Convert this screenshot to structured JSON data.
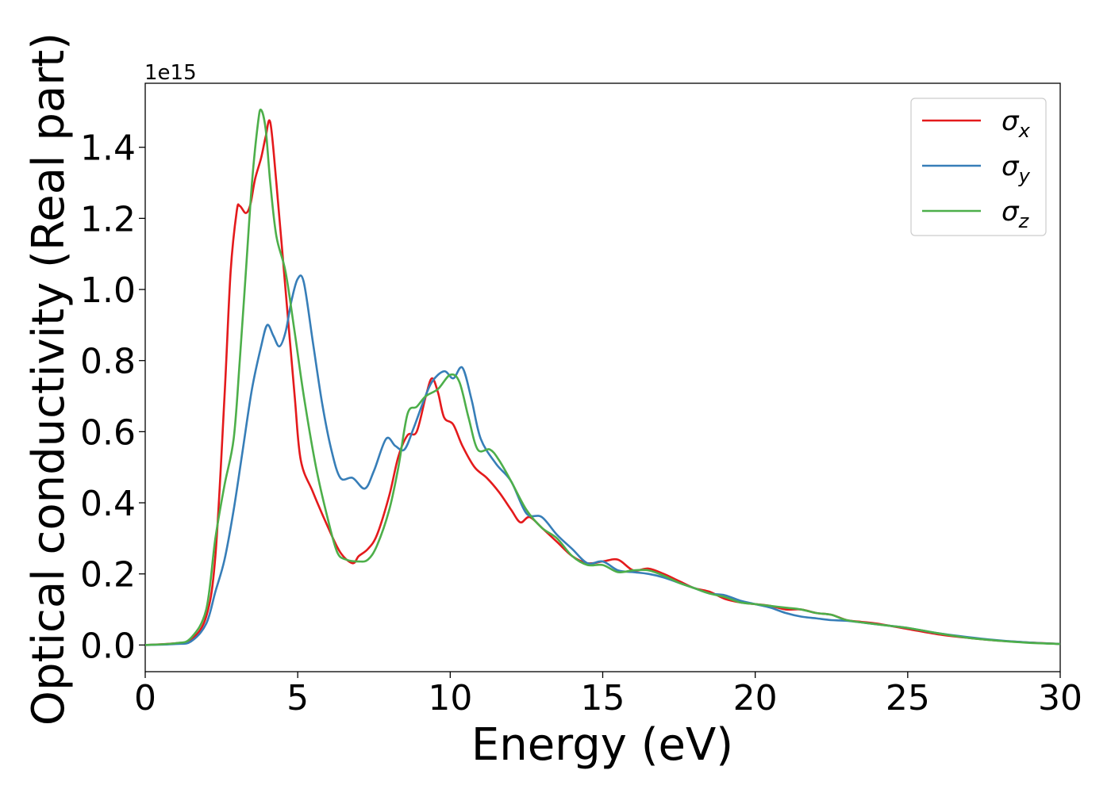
{
  "chart_data": {
    "type": "line",
    "title": "",
    "xlabel": "Energy (eV)",
    "ylabel": "Optical conductivity (Real part)",
    "y_offset_label": "1e15",
    "y_scale": 1000000000000000.0,
    "xlim": [
      0,
      30
    ],
    "ylim": [
      -0.075,
      1.58
    ],
    "x_ticks": [
      0,
      5,
      10,
      15,
      20,
      25,
      30
    ],
    "x_tick_labels": [
      "0",
      "5",
      "10",
      "15",
      "20",
      "25",
      "30"
    ],
    "y_ticks": [
      0.0,
      0.2,
      0.4,
      0.6,
      0.8,
      1.0,
      1.2,
      1.4
    ],
    "y_tick_labels": [
      "0.0",
      "0.2",
      "0.4",
      "0.6",
      "0.8",
      "1.0",
      "1.2",
      "1.4"
    ],
    "grid": false,
    "legend_position": "top-right",
    "series": [
      {
        "name": "σx",
        "symbol": "σ",
        "subscript": "x",
        "color": "#e41a1c",
        "points": [
          [
            0,
            0
          ],
          [
            1,
            0.005
          ],
          [
            1.5,
            0.015
          ],
          [
            2.0,
            0.08
          ],
          [
            2.3,
            0.25
          ],
          [
            2.6,
            0.7
          ],
          [
            2.8,
            1.05
          ],
          [
            3.0,
            1.22
          ],
          [
            3.1,
            1.235
          ],
          [
            3.3,
            1.215
          ],
          [
            3.45,
            1.24
          ],
          [
            3.6,
            1.31
          ],
          [
            3.8,
            1.37
          ],
          [
            3.95,
            1.43
          ],
          [
            4.1,
            1.47
          ],
          [
            4.3,
            1.3
          ],
          [
            4.6,
            1.0
          ],
          [
            4.9,
            0.7
          ],
          [
            5.1,
            0.52
          ],
          [
            5.5,
            0.43
          ],
          [
            6.0,
            0.33
          ],
          [
            6.4,
            0.26
          ],
          [
            6.8,
            0.23
          ],
          [
            7.0,
            0.25
          ],
          [
            7.3,
            0.27
          ],
          [
            7.6,
            0.31
          ],
          [
            8.0,
            0.42
          ],
          [
            8.3,
            0.53
          ],
          [
            8.6,
            0.59
          ],
          [
            8.9,
            0.6
          ],
          [
            9.2,
            0.7
          ],
          [
            9.4,
            0.75
          ],
          [
            9.6,
            0.71
          ],
          [
            9.8,
            0.64
          ],
          [
            10.1,
            0.62
          ],
          [
            10.4,
            0.56
          ],
          [
            10.8,
            0.5
          ],
          [
            11.2,
            0.47
          ],
          [
            11.6,
            0.43
          ],
          [
            12.0,
            0.38
          ],
          [
            12.3,
            0.345
          ],
          [
            12.6,
            0.36
          ],
          [
            13.0,
            0.33
          ],
          [
            13.5,
            0.29
          ],
          [
            14.0,
            0.25
          ],
          [
            14.5,
            0.23
          ],
          [
            15.0,
            0.235
          ],
          [
            15.5,
            0.24
          ],
          [
            16.0,
            0.21
          ],
          [
            16.5,
            0.215
          ],
          [
            17.0,
            0.2
          ],
          [
            17.5,
            0.18
          ],
          [
            18.0,
            0.16
          ],
          [
            18.5,
            0.15
          ],
          [
            19.0,
            0.13
          ],
          [
            19.5,
            0.12
          ],
          [
            20.0,
            0.115
          ],
          [
            20.5,
            0.11
          ],
          [
            21.0,
            0.1
          ],
          [
            21.5,
            0.1
          ],
          [
            22.0,
            0.09
          ],
          [
            22.5,
            0.085
          ],
          [
            23.0,
            0.07
          ],
          [
            23.5,
            0.065
          ],
          [
            24.0,
            0.06
          ],
          [
            25.0,
            0.045
          ],
          [
            26.0,
            0.03
          ],
          [
            27.0,
            0.02
          ],
          [
            28.0,
            0.012
          ],
          [
            29.0,
            0.007
          ],
          [
            30.0,
            0.003
          ]
        ]
      },
      {
        "name": "σy",
        "symbol": "σ",
        "subscript": "y",
        "color": "#377eb8",
        "points": [
          [
            0,
            0
          ],
          [
            1,
            0.003
          ],
          [
            1.5,
            0.01
          ],
          [
            2.0,
            0.06
          ],
          [
            2.3,
            0.15
          ],
          [
            2.6,
            0.24
          ],
          [
            2.9,
            0.38
          ],
          [
            3.2,
            0.55
          ],
          [
            3.5,
            0.72
          ],
          [
            3.8,
            0.84
          ],
          [
            4.0,
            0.9
          ],
          [
            4.2,
            0.87
          ],
          [
            4.4,
            0.84
          ],
          [
            4.6,
            0.88
          ],
          [
            4.8,
            0.97
          ],
          [
            5.0,
            1.03
          ],
          [
            5.2,
            1.02
          ],
          [
            5.5,
            0.85
          ],
          [
            5.8,
            0.68
          ],
          [
            6.1,
            0.55
          ],
          [
            6.4,
            0.47
          ],
          [
            6.8,
            0.47
          ],
          [
            7.2,
            0.44
          ],
          [
            7.5,
            0.49
          ],
          [
            7.9,
            0.58
          ],
          [
            8.2,
            0.56
          ],
          [
            8.5,
            0.55
          ],
          [
            8.8,
            0.61
          ],
          [
            9.1,
            0.68
          ],
          [
            9.4,
            0.74
          ],
          [
            9.8,
            0.77
          ],
          [
            10.1,
            0.75
          ],
          [
            10.4,
            0.78
          ],
          [
            10.7,
            0.69
          ],
          [
            11.0,
            0.58
          ],
          [
            11.5,
            0.51
          ],
          [
            12.0,
            0.46
          ],
          [
            12.5,
            0.37
          ],
          [
            13.0,
            0.36
          ],
          [
            13.5,
            0.31
          ],
          [
            14.0,
            0.27
          ],
          [
            14.5,
            0.23
          ],
          [
            15.0,
            0.235
          ],
          [
            15.5,
            0.21
          ],
          [
            16.0,
            0.205
          ],
          [
            16.5,
            0.2
          ],
          [
            17.0,
            0.19
          ],
          [
            17.5,
            0.175
          ],
          [
            18.0,
            0.16
          ],
          [
            18.5,
            0.145
          ],
          [
            19.0,
            0.14
          ],
          [
            19.5,
            0.125
          ],
          [
            20.0,
            0.115
          ],
          [
            20.5,
            0.105
          ],
          [
            21.0,
            0.09
          ],
          [
            21.5,
            0.08
          ],
          [
            22.0,
            0.075
          ],
          [
            22.5,
            0.07
          ],
          [
            23.0,
            0.068
          ],
          [
            24.0,
            0.058
          ],
          [
            25.0,
            0.048
          ],
          [
            26.0,
            0.033
          ],
          [
            27.0,
            0.022
          ],
          [
            28.0,
            0.013
          ],
          [
            29.0,
            0.007
          ],
          [
            30.0,
            0.003
          ]
        ]
      },
      {
        "name": "σz",
        "symbol": "σ",
        "subscript": "z",
        "color": "#4daf4a",
        "points": [
          [
            0,
            0
          ],
          [
            1,
            0.005
          ],
          [
            1.5,
            0.02
          ],
          [
            2.0,
            0.1
          ],
          [
            2.3,
            0.3
          ],
          [
            2.6,
            0.45
          ],
          [
            2.9,
            0.58
          ],
          [
            3.1,
            0.8
          ],
          [
            3.3,
            1.05
          ],
          [
            3.5,
            1.3
          ],
          [
            3.7,
            1.47
          ],
          [
            3.8,
            1.505
          ],
          [
            3.95,
            1.45
          ],
          [
            4.1,
            1.3
          ],
          [
            4.3,
            1.15
          ],
          [
            4.6,
            1.05
          ],
          [
            4.9,
            0.88
          ],
          [
            5.2,
            0.7
          ],
          [
            5.6,
            0.5
          ],
          [
            6.0,
            0.35
          ],
          [
            6.3,
            0.26
          ],
          [
            6.6,
            0.24
          ],
          [
            7.0,
            0.235
          ],
          [
            7.3,
            0.24
          ],
          [
            7.6,
            0.28
          ],
          [
            8.0,
            0.38
          ],
          [
            8.3,
            0.5
          ],
          [
            8.6,
            0.65
          ],
          [
            8.9,
            0.67
          ],
          [
            9.2,
            0.7
          ],
          [
            9.6,
            0.72
          ],
          [
            10.0,
            0.76
          ],
          [
            10.3,
            0.74
          ],
          [
            10.6,
            0.64
          ],
          [
            10.9,
            0.55
          ],
          [
            11.3,
            0.55
          ],
          [
            11.6,
            0.52
          ],
          [
            12.0,
            0.46
          ],
          [
            12.5,
            0.38
          ],
          [
            13.0,
            0.33
          ],
          [
            13.5,
            0.3
          ],
          [
            14.0,
            0.25
          ],
          [
            14.5,
            0.225
          ],
          [
            15.0,
            0.225
          ],
          [
            15.5,
            0.205
          ],
          [
            16.0,
            0.21
          ],
          [
            16.5,
            0.21
          ],
          [
            17.0,
            0.195
          ],
          [
            17.5,
            0.175
          ],
          [
            18.0,
            0.16
          ],
          [
            18.5,
            0.145
          ],
          [
            19.0,
            0.135
          ],
          [
            19.5,
            0.12
          ],
          [
            20.0,
            0.115
          ],
          [
            20.5,
            0.11
          ],
          [
            21.0,
            0.105
          ],
          [
            21.5,
            0.1
          ],
          [
            22.0,
            0.09
          ],
          [
            22.5,
            0.085
          ],
          [
            23.0,
            0.07
          ],
          [
            24.0,
            0.058
          ],
          [
            25.0,
            0.048
          ],
          [
            26.0,
            0.033
          ],
          [
            27.0,
            0.02
          ],
          [
            28.0,
            0.012
          ],
          [
            29.0,
            0.006
          ],
          [
            30.0,
            0.003
          ]
        ]
      }
    ]
  }
}
